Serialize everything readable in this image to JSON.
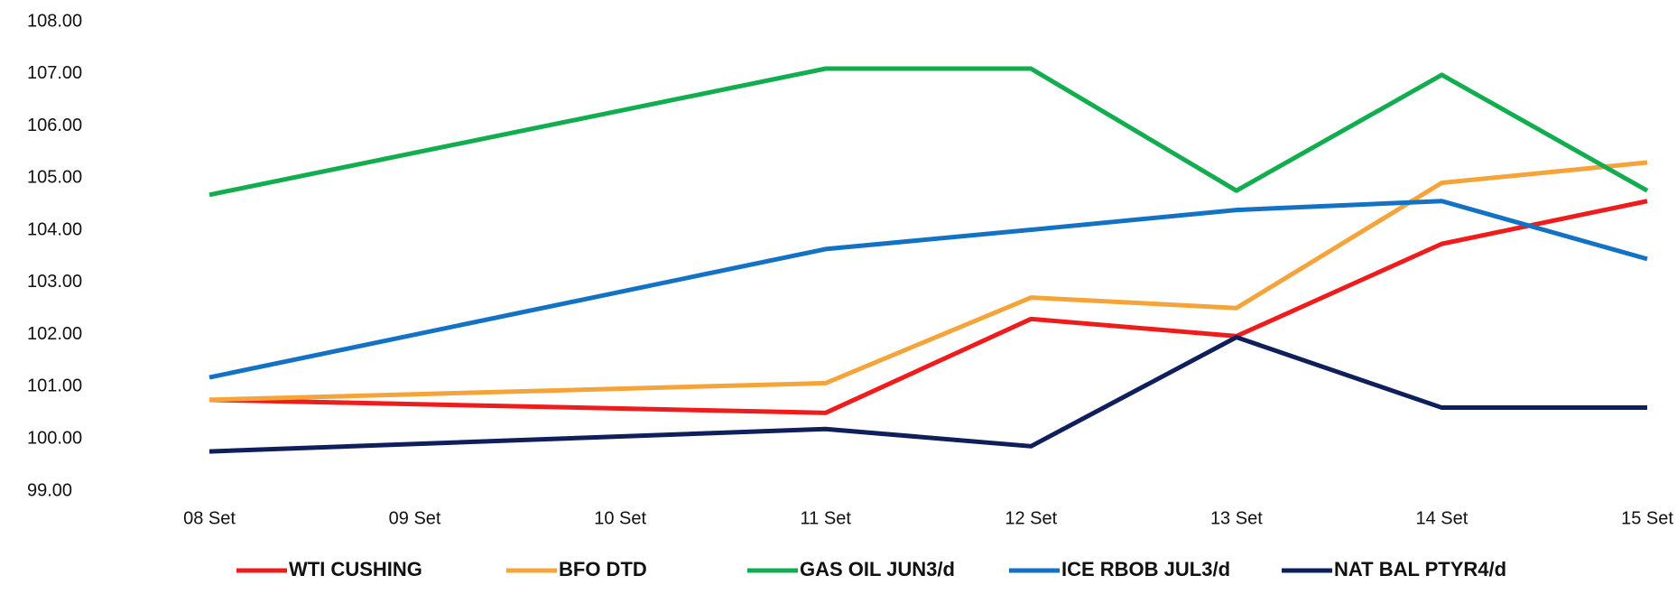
{
  "chart_data": {
    "type": "line",
    "span_gaps": true,
    "grid": false,
    "legend": "bottom",
    "categories": [
      "08 Set",
      "09 Set",
      "10 Set",
      "11 Set",
      "12 Set",
      "13 Set",
      "14 Set",
      "15 Set"
    ],
    "ylim": [
      99,
      108
    ],
    "yticks": [
      {
        "value": 99,
        "label": "99.00"
      },
      {
        "value": 100,
        "label": "100.00"
      },
      {
        "value": 101,
        "label": "101.00"
      },
      {
        "value": 102,
        "label": "102.00"
      },
      {
        "value": 103,
        "label": "103.00"
      },
      {
        "value": 104,
        "label": "104.00"
      },
      {
        "value": 105,
        "label": "105.00"
      },
      {
        "value": 106,
        "label": "106.00"
      },
      {
        "value": 107,
        "label": "107.00"
      },
      {
        "value": 108,
        "label": "108.00"
      }
    ],
    "series": [
      {
        "name": "WTI CUSHING",
        "color": "#ee1c1c",
        "values": [
          100.75,
          null,
          null,
          100.5,
          102.3,
          101.97,
          103.74,
          104.56
        ]
      },
      {
        "name": "BFO DTD",
        "color": "#f5a43a",
        "values": [
          100.75,
          null,
          null,
          101.07,
          102.71,
          102.51,
          104.91,
          105.3
        ]
      },
      {
        "name": "GAS OIL JUN3/d",
        "color": "#11ad4f",
        "values": [
          104.68,
          null,
          null,
          107.1,
          107.1,
          104.76,
          106.98,
          104.76
        ]
      },
      {
        "name": "ICE RBOB JUL3/d",
        "color": "#1372c4",
        "values": [
          101.18,
          null,
          null,
          103.64,
          104.01,
          104.39,
          104.56,
          103.45
        ]
      },
      {
        "name": "NAT BAL PTYR4/d",
        "color": "#0f1f5c",
        "values": [
          99.76,
          null,
          null,
          100.19,
          99.86,
          101.95,
          100.6,
          100.6
        ]
      }
    ]
  }
}
